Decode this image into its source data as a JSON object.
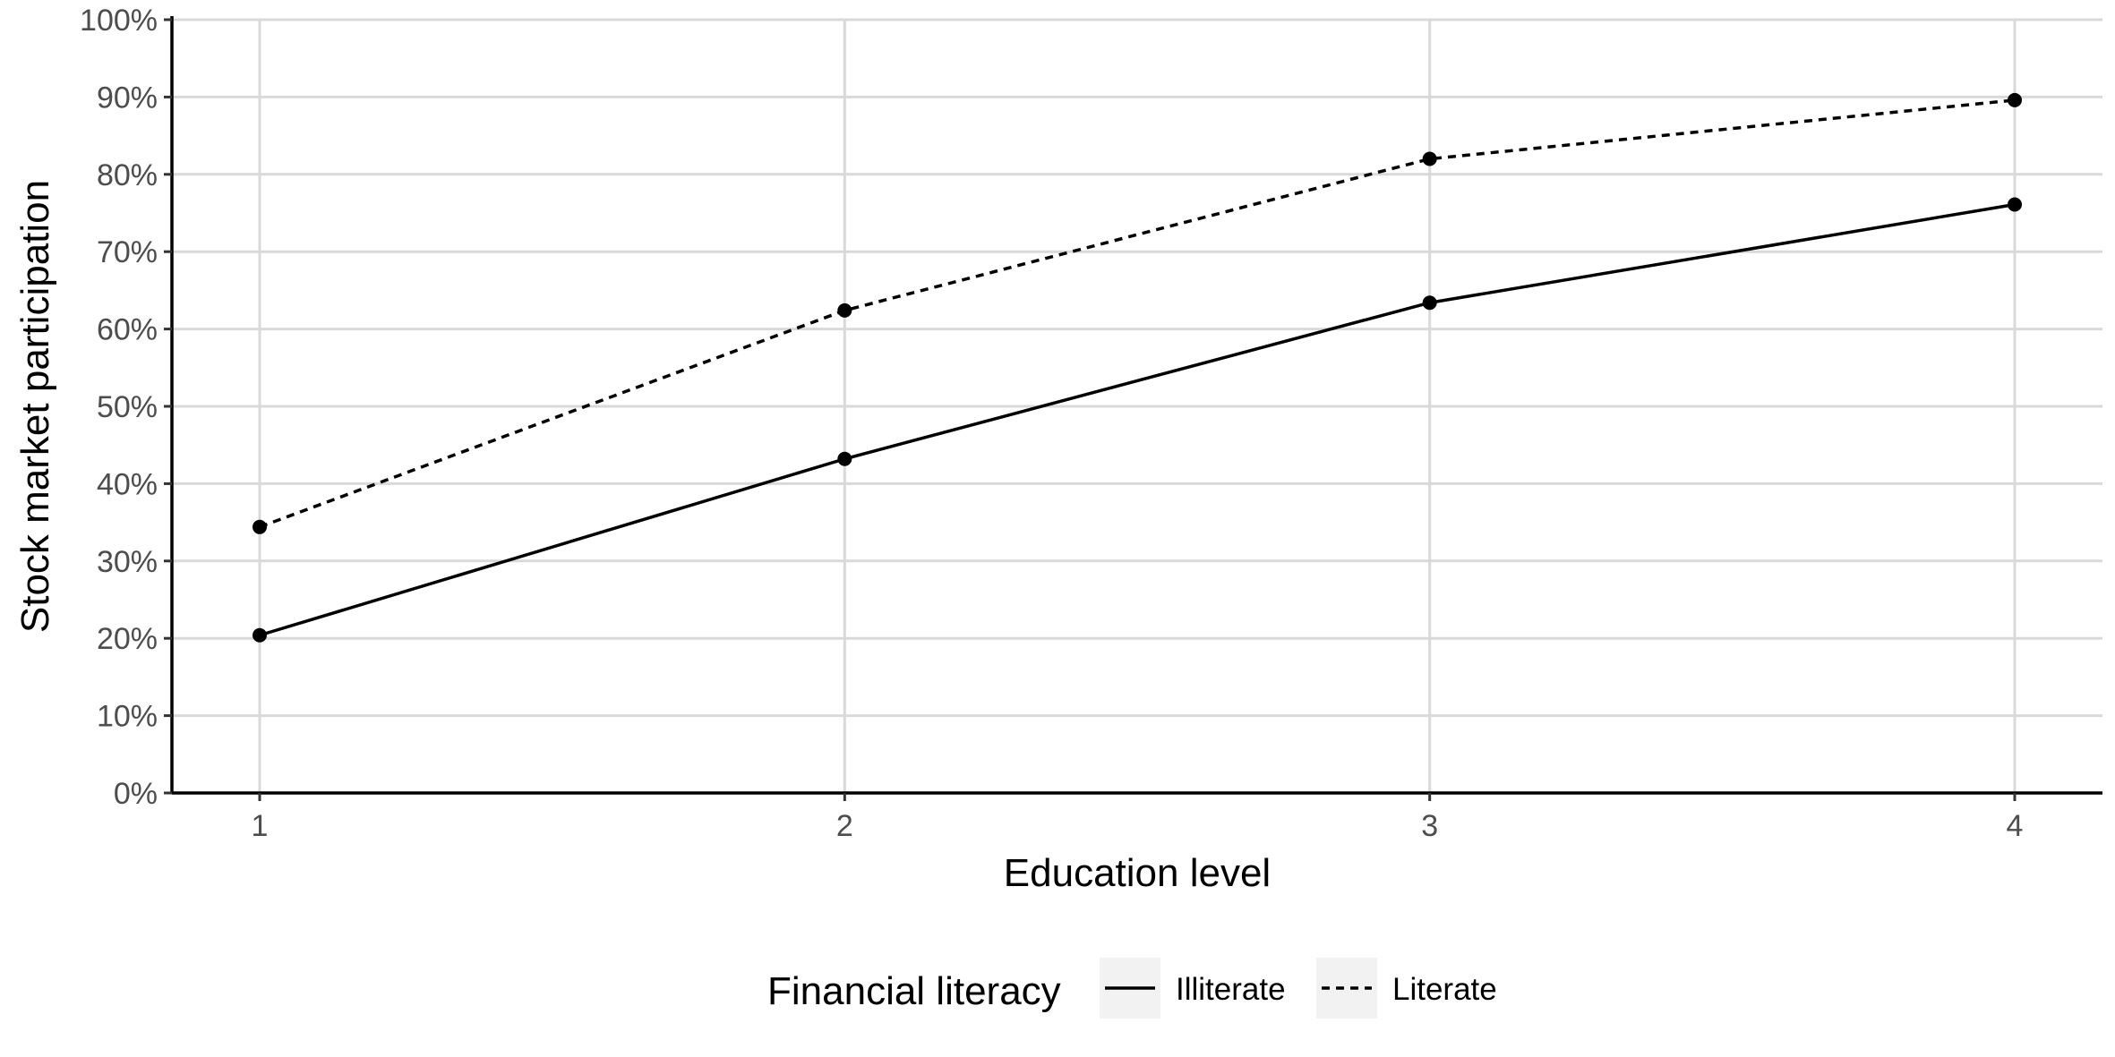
{
  "chart_data": {
    "type": "line",
    "xlabel": "Education level",
    "ylabel": "Stock market participation",
    "x": [
      1,
      2,
      3,
      4
    ],
    "xticks": [
      "1",
      "2",
      "3",
      "4"
    ],
    "xlim": [
      0.85,
      4.15
    ],
    "ylim": [
      0,
      100
    ],
    "yticks": [
      "0%",
      "10%",
      "20%",
      "30%",
      "40%",
      "50%",
      "60%",
      "70%",
      "80%",
      "90%",
      "100%"
    ],
    "grid": true,
    "legend": {
      "title": "Financial literacy",
      "placement": "bottom",
      "entries": [
        "Illiterate",
        "Literate"
      ]
    },
    "series": [
      {
        "name": "Illiterate",
        "line_style": "solid",
        "values": [
          20.4,
          43.2,
          63.4,
          76.1
        ]
      },
      {
        "name": "Literate",
        "line_style": "dotted",
        "values": [
          34.4,
          62.4,
          82.0,
          89.6
        ]
      }
    ],
    "colors": {
      "lines": "#000000",
      "grid": "#d9d9d9",
      "legend_key_bg": "#f2f2f2"
    }
  }
}
